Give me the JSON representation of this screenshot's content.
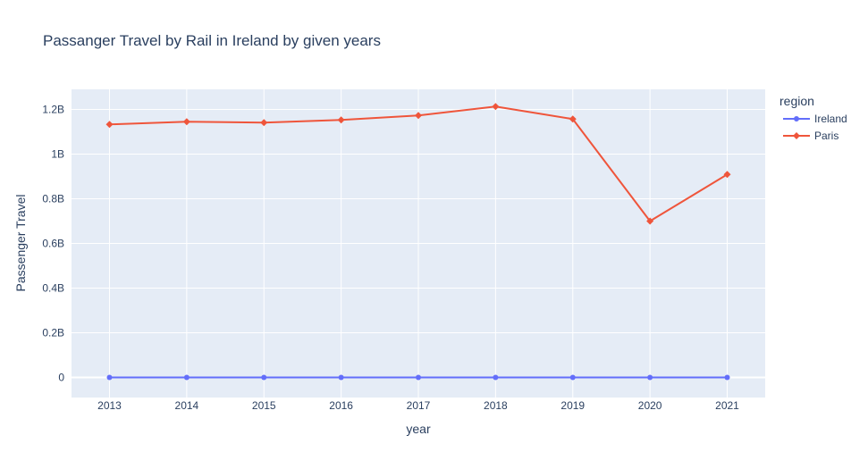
{
  "chart_data": {
    "type": "line",
    "title": "Passanger Travel by Rail in Ireland by given years",
    "xlabel": "year",
    "ylabel": "Passenger Travel",
    "x": [
      2013,
      2014,
      2015,
      2016,
      2017,
      2018,
      2019,
      2020,
      2021
    ],
    "ylim": [
      -90000000,
      1290000000
    ],
    "y_ticks": [
      0,
      200000000,
      400000000,
      600000000,
      800000000,
      1000000000,
      1200000000
    ],
    "y_tick_labels": [
      "0",
      "0.2B",
      "0.4B",
      "0.6B",
      "0.8B",
      "1B",
      "1.2B"
    ],
    "x_tick_labels": [
      "2013",
      "2014",
      "2015",
      "2016",
      "2017",
      "2018",
      "2019",
      "2020",
      "2021"
    ],
    "grid": true,
    "legend": {
      "title": "region",
      "placement": "top-right"
    },
    "series": [
      {
        "name": "Ireland",
        "color": "#636efa",
        "marker": "circle",
        "values": [
          45000,
          45000,
          46000,
          47000,
          48000,
          50000,
          50000,
          17000,
          28000
        ]
      },
      {
        "name": "Paris",
        "color": "#ef553b",
        "marker": "diamond",
        "values": [
          1133000000,
          1145000000,
          1141000000,
          1153000000,
          1173000000,
          1213000000,
          1157000000,
          700000000,
          909000000
        ]
      }
    ]
  }
}
